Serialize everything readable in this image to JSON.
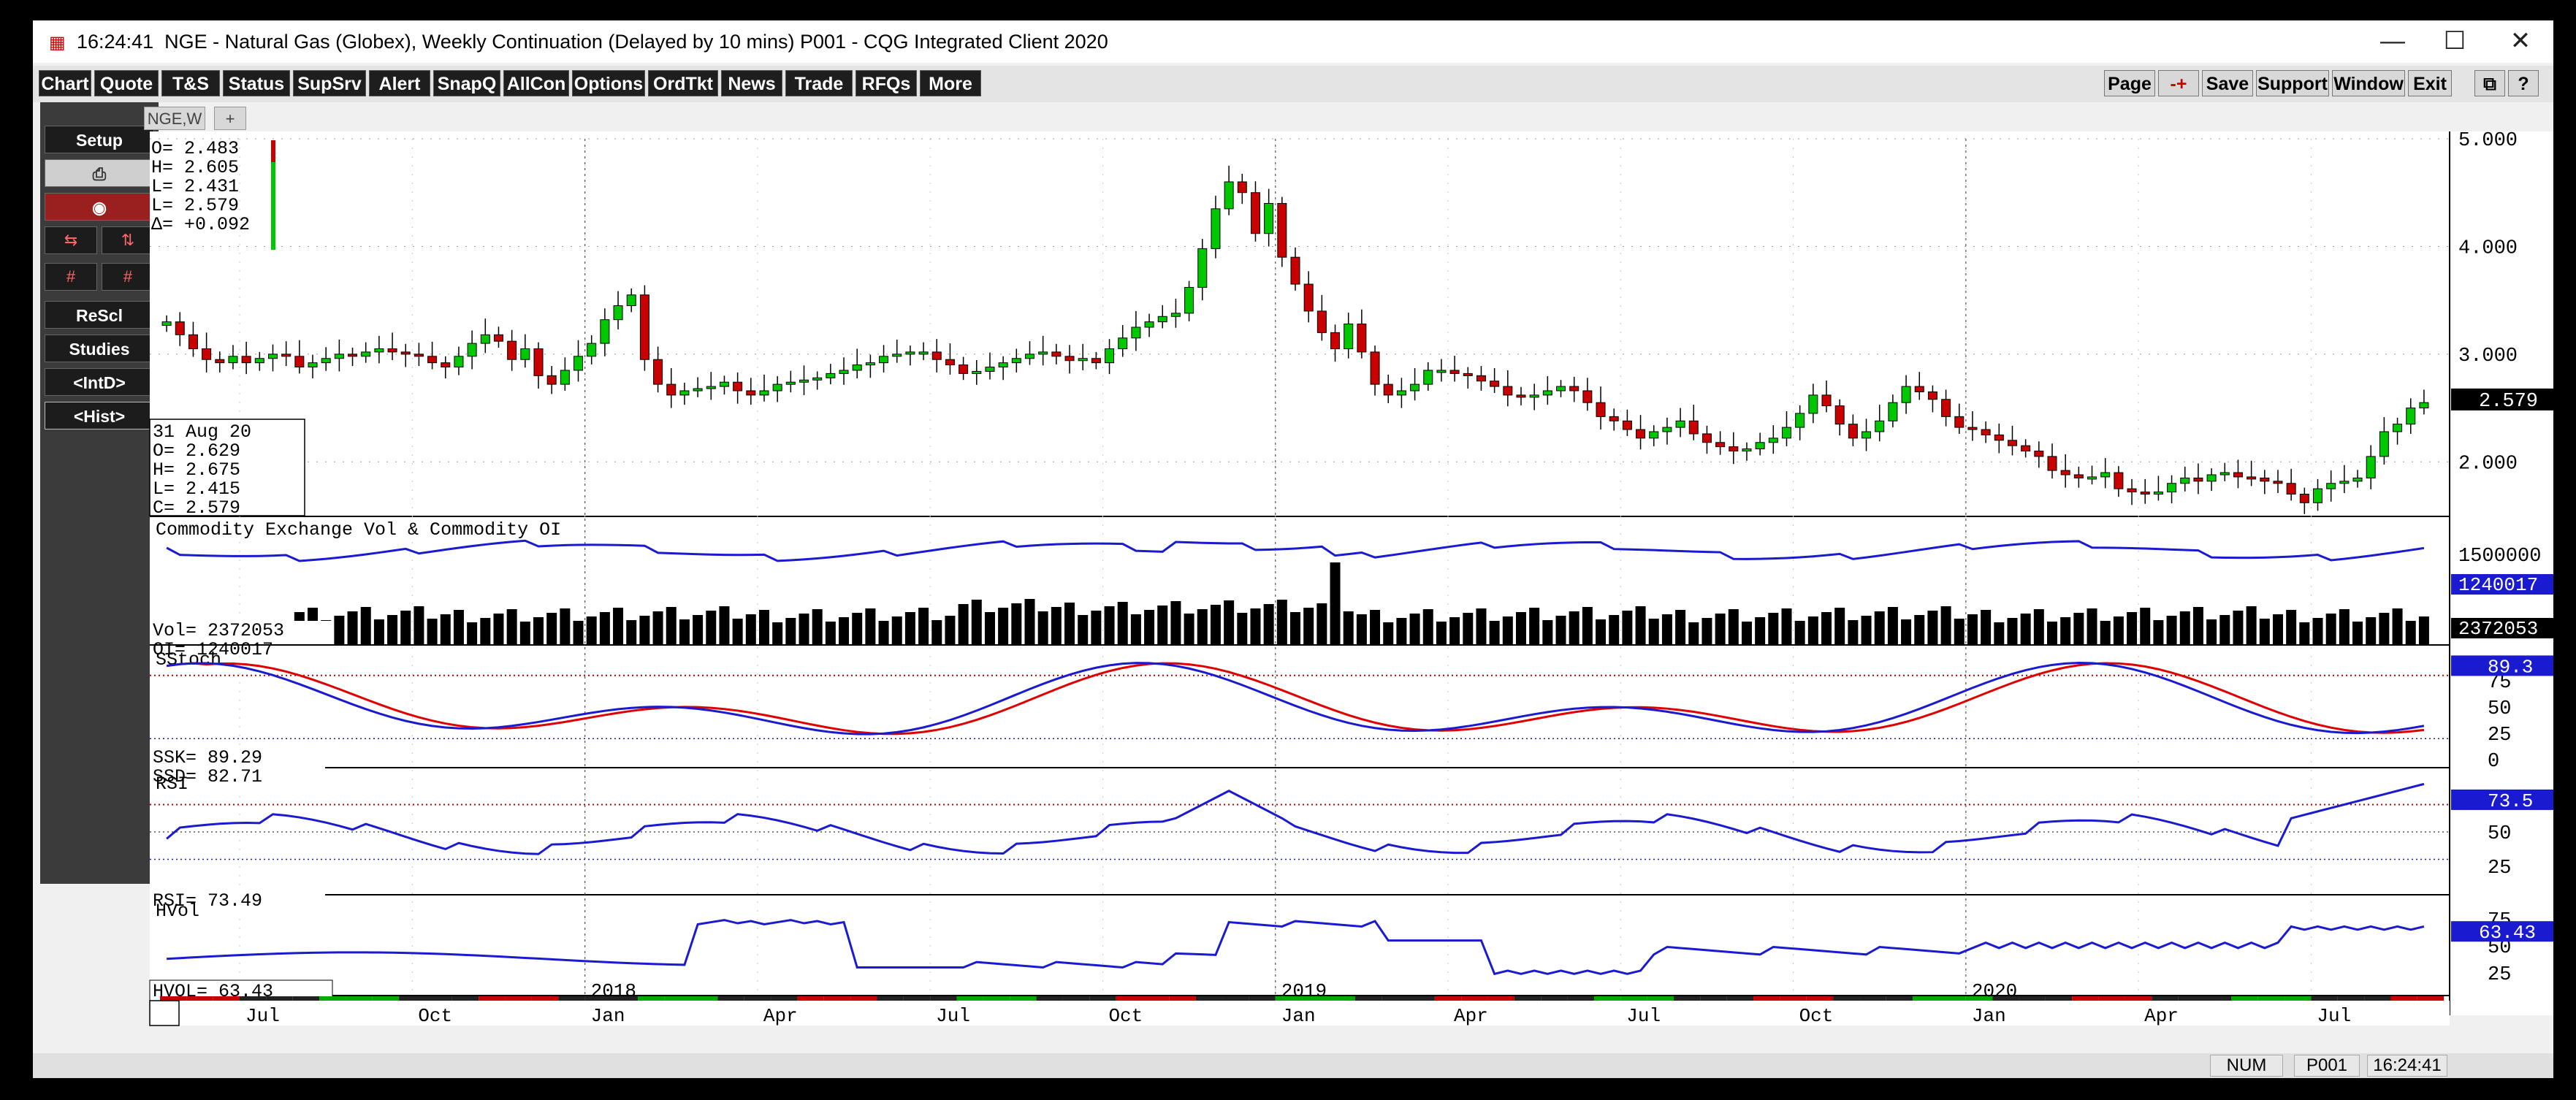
{
  "window": {
    "time": "16:24:41",
    "title": "NGE - Natural Gas (Globex), Weekly Continuation (Delayed by 10 mins)   P001 - CQG Integrated Client 2020",
    "minimize": "—",
    "maximize": "☐",
    "close": "✕"
  },
  "toolbar": {
    "left": [
      "Chart",
      "Quote",
      "T&S",
      "Status",
      "SupSrv",
      "Alert",
      "SnapQ",
      "AllCon",
      "Options",
      "OrdTkt",
      "News",
      "Trade",
      "RFQs",
      "More"
    ],
    "right": [
      "Page",
      "-+",
      "Save",
      "Support",
      "Window",
      "Exit"
    ]
  },
  "sidebar": {
    "setup": "Setup",
    "rescl": "ReScl",
    "studies": "Studies",
    "intd": "<IntD>",
    "hist": "<Hist>"
  },
  "tabs": {
    "active": "NGE,W",
    "add": "+"
  },
  "price_panel": {
    "ohlc_top": [
      "O=   2.483",
      "H=   2.605",
      "L=   2.431",
      "L=   2.579",
      "Δ= +0.092"
    ],
    "cursor_box": [
      "31 Aug 20",
      "O=    2.629",
      "H=    2.675",
      "L=    2.415",
      "C=    2.579"
    ],
    "axis_labels": [
      "5.000",
      "4.000",
      "3.000",
      "2.000"
    ],
    "last_price": "2.579"
  },
  "volume_panel": {
    "title": "Commodity Exchange Vol & Commodity OI",
    "vol_readout": "Vol=  2372053",
    "oi_readout": "OI=  1240017",
    "axis_label": "1500000",
    "oi_last": "1240017",
    "vol_last": "2372053"
  },
  "sstoch_panel": {
    "title": "SStoch",
    "ssk": "SSK=    89.29",
    "ssd": "SSD=    82.71",
    "axis_labels": [
      "75",
      "50",
      "25",
      "0"
    ],
    "last": "89.3"
  },
  "rsi_panel": {
    "title": "RSI",
    "readout": "RSI=   73.49",
    "axis_labels": [
      "50",
      "25"
    ],
    "last": "73.5"
  },
  "hvol_panel": {
    "title": "HVol",
    "readout": "HVOL=   63.43",
    "axis_labels": [
      "75",
      "50",
      "25"
    ],
    "last": "63.43"
  },
  "xaxis": {
    "years": [
      "2018",
      "2019",
      "2020"
    ],
    "months": [
      "Jul",
      "Oct",
      "Jan",
      "Apr",
      "Jul",
      "Oct",
      "Jan",
      "Apr",
      "Jul",
      "Oct",
      "Jan",
      "Apr",
      "Jul"
    ]
  },
  "statusbar": {
    "num": "NUM",
    "page": "P001",
    "time": "16:24:41"
  },
  "colors": {
    "up": "#00c800",
    "down": "#c80000",
    "blue": "#1a1ad0",
    "red": "#e00000",
    "dotted_red": "#c00000"
  },
  "chart_data": [
    {
      "type": "candlestick",
      "series": [
        {
          "name": "NGE,W",
          "values": [
            3.3,
            3.18,
            3.05,
            2.95,
            2.92,
            2.98,
            2.92,
            2.96,
            3.0,
            2.98,
            2.88,
            2.92,
            2.96,
            3.0,
            2.98,
            3.02,
            3.05,
            3.02,
            3.0,
            2.98,
            2.92,
            2.88,
            2.98,
            3.1,
            3.18,
            3.12,
            2.95,
            3.05,
            2.8,
            2.72,
            2.85,
            2.98,
            3.1,
            3.32,
            3.45,
            3.55,
            2.95,
            2.72,
            2.62,
            2.66,
            2.68,
            2.7,
            2.74,
            2.66,
            2.62,
            2.66,
            2.72,
            2.74,
            2.76,
            2.78,
            2.82,
            2.85,
            2.9,
            2.92,
            2.98,
            3.0,
            3.02,
            3.02,
            2.95,
            2.9,
            2.82,
            2.84,
            2.88,
            2.92,
            2.96,
            3.0,
            3.02,
            2.98,
            2.94,
            2.96,
            2.92,
            3.05,
            3.15,
            3.25,
            3.3,
            3.35,
            3.38,
            3.62,
            3.98,
            4.35,
            4.6,
            4.5,
            4.12,
            4.4,
            3.9,
            3.65,
            3.4,
            3.2,
            3.05,
            3.28,
            3.02,
            2.72,
            2.62,
            2.66,
            2.72,
            2.85,
            2.85,
            2.82,
            2.8,
            2.75,
            2.7,
            2.62,
            2.6,
            2.62,
            2.66,
            2.7,
            2.66,
            2.55,
            2.42,
            2.38,
            2.3,
            2.22,
            2.28,
            2.32,
            2.38,
            2.26,
            2.18,
            2.14,
            2.1,
            2.12,
            2.18,
            2.22,
            2.32,
            2.45,
            2.62,
            2.52,
            2.35,
            2.22,
            2.28,
            2.38,
            2.55,
            2.7,
            2.65,
            2.58,
            2.42,
            2.32,
            2.3,
            2.25,
            2.2,
            2.15,
            2.1,
            2.05,
            1.92,
            1.88,
            1.85,
            1.86,
            1.9,
            1.75,
            1.72,
            1.7,
            1.72,
            1.8,
            1.85,
            1.82,
            1.88,
            1.9,
            1.86,
            1.85,
            1.82,
            1.8,
            1.7,
            1.62,
            1.75,
            1.8,
            1.82,
            1.85,
            2.05,
            2.28,
            2.35,
            2.5,
            2.55
          ]
        }
      ],
      "ylim": [
        1.5,
        5.0
      ],
      "last": 2.579
    },
    {
      "type": "bar",
      "series": [
        {
          "name": "Vol",
          "values": []
        },
        {
          "name": "OI",
          "values": []
        }
      ],
      "last_vol": 2372053,
      "last_oi": 1240017
    },
    {
      "type": "line",
      "series": [
        {
          "name": "SSK",
          "values": []
        },
        {
          "name": "SSD",
          "values": []
        }
      ],
      "ylim": [
        0,
        100
      ],
      "last_ssk": 89.29,
      "last_ssd": 82.71
    },
    {
      "type": "line",
      "series": [
        {
          "name": "RSI",
          "values": []
        }
      ],
      "ylim": [
        0,
        100
      ],
      "last": 73.49
    },
    {
      "type": "line",
      "series": [
        {
          "name": "HVOL",
          "values": []
        }
      ],
      "ylim": [
        0,
        100
      ],
      "last": 63.43
    }
  ]
}
